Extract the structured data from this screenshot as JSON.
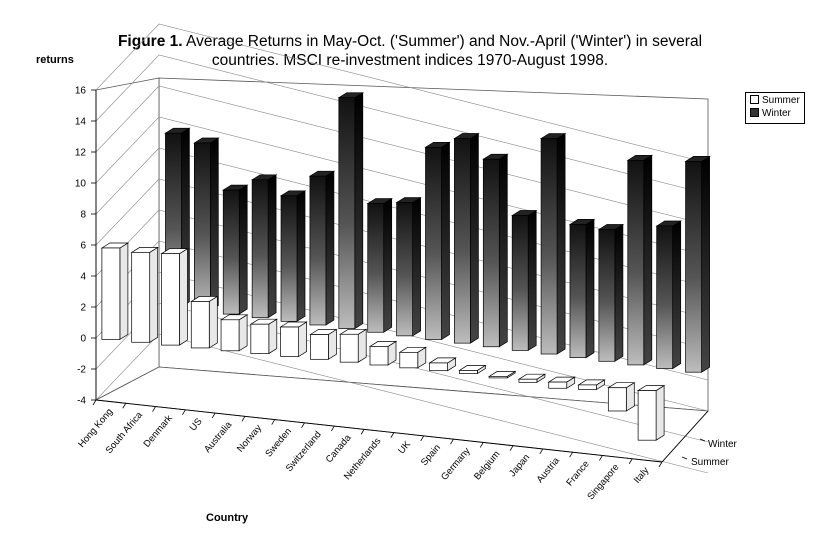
{
  "title": {
    "bold": "Figure 1.",
    "line1": " Average Returns in May-Oct. ('Summer') and Nov.-April ('Winter') in several",
    "line2": "countries. MSCI re-investment indices 1970-August 1998."
  },
  "colors": {
    "summer": "#ffffff",
    "winter_dark": "#1a1a1a",
    "winter_light": "#bdbdbd"
  },
  "chart_data": {
    "type": "bar",
    "subtype": "3d-clustered",
    "ylabel": "returns",
    "xlabel": "Country",
    "depth_labels": [
      "Winter",
      "Summer"
    ],
    "ylim": [
      -4,
      16
    ],
    "yticks": [
      -4,
      -2,
      0,
      2,
      4,
      6,
      8,
      10,
      12,
      14,
      16
    ],
    "grid": true,
    "legend": "top-right",
    "categories": [
      "Hong Kong",
      "South Africa",
      "Denmark",
      "US",
      "Australia",
      "Norway",
      "Sweden",
      "Switzerland",
      "Canada",
      "Netherlands",
      "UK",
      "Spain",
      "Germany",
      "Belgium",
      "Japan",
      "Austria",
      "France",
      "Singapore",
      "Italy"
    ],
    "series": [
      {
        "name": "Summer",
        "values": [
          5.9,
          5.8,
          5.9,
          3.0,
          2.0,
          1.9,
          1.9,
          1.6,
          1.8,
          1.2,
          1.0,
          0.5,
          0.2,
          -0.1,
          -0.2,
          -0.4,
          -0.3,
          -1.5,
          -3.2
        ]
      },
      {
        "name": "Winter",
        "values": [
          11.2,
          10.8,
          8.0,
          8.9,
          8.1,
          9.6,
          14.9,
          8.3,
          8.6,
          12.4,
          13.2,
          12.1,
          8.7,
          13.9,
          8.6,
          8.5,
          13.2,
          9.2,
          13.6
        ]
      }
    ]
  }
}
